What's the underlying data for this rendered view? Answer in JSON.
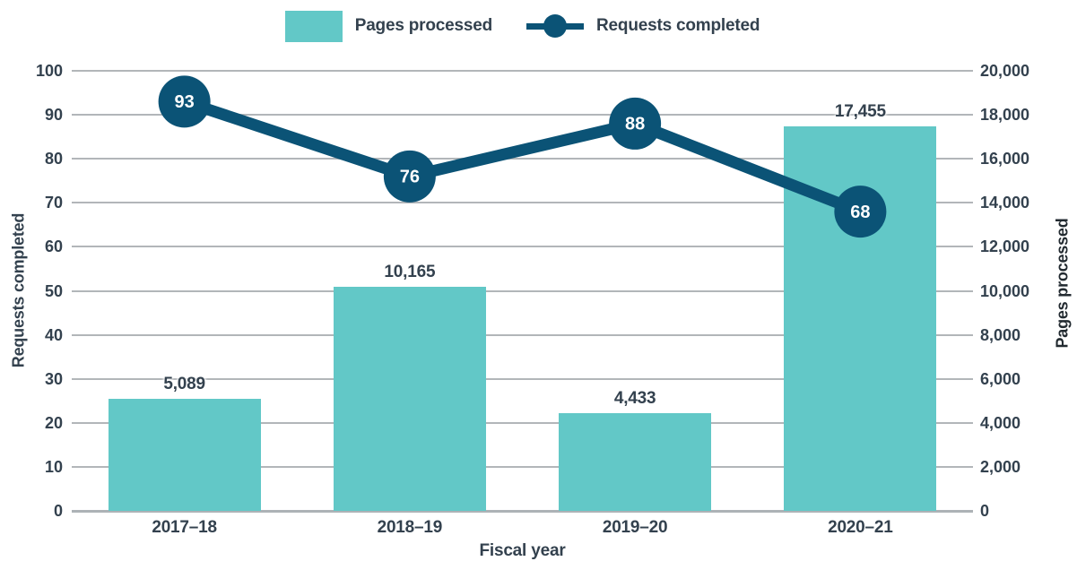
{
  "colors": {
    "bar": "#62C8C7",
    "line": "#0B5376",
    "text": "#33414E",
    "grid": "#B2B6B9",
    "axis_line": "#ADB2B6",
    "marker_value_text": "#FFFFFF"
  },
  "legend": {
    "position": "top",
    "items": [
      {
        "label": "Pages processed",
        "swatch": "bar-swatch",
        "color": "#62C8C7"
      },
      {
        "label": "Requests completed",
        "swatch": "line-swatch",
        "color": "#0B5376"
      }
    ]
  },
  "chart_data": {
    "type": "combo",
    "categories": [
      "2017–18",
      "2018–19",
      "2019–20",
      "2020–21"
    ],
    "series": [
      {
        "name": "Pages processed",
        "type": "bar",
        "axis": "right",
        "values": [
          5089,
          10165,
          4433,
          17455
        ],
        "value_labels": [
          "5,089",
          "10,165",
          "4,433",
          "17,455"
        ]
      },
      {
        "name": "Requests completed",
        "type": "line",
        "axis": "left",
        "values": [
          93,
          76,
          88,
          68
        ],
        "value_labels": [
          "93",
          "76",
          "88",
          "68"
        ]
      }
    ],
    "left_axis": {
      "title": "Requests completed",
      "min": 0,
      "max": 100,
      "step": 10,
      "ticks": [
        0,
        10,
        20,
        30,
        40,
        50,
        60,
        70,
        80,
        90,
        100
      ]
    },
    "right_axis": {
      "title": "Pages processed",
      "min": 0,
      "max": 20000,
      "step": 2000,
      "ticks": [
        0,
        2000,
        4000,
        6000,
        8000,
        10000,
        12000,
        14000,
        16000,
        18000,
        20000
      ]
    },
    "x_axis": {
      "title": "Fiscal year"
    },
    "grid": true,
    "legend_position": "top"
  }
}
